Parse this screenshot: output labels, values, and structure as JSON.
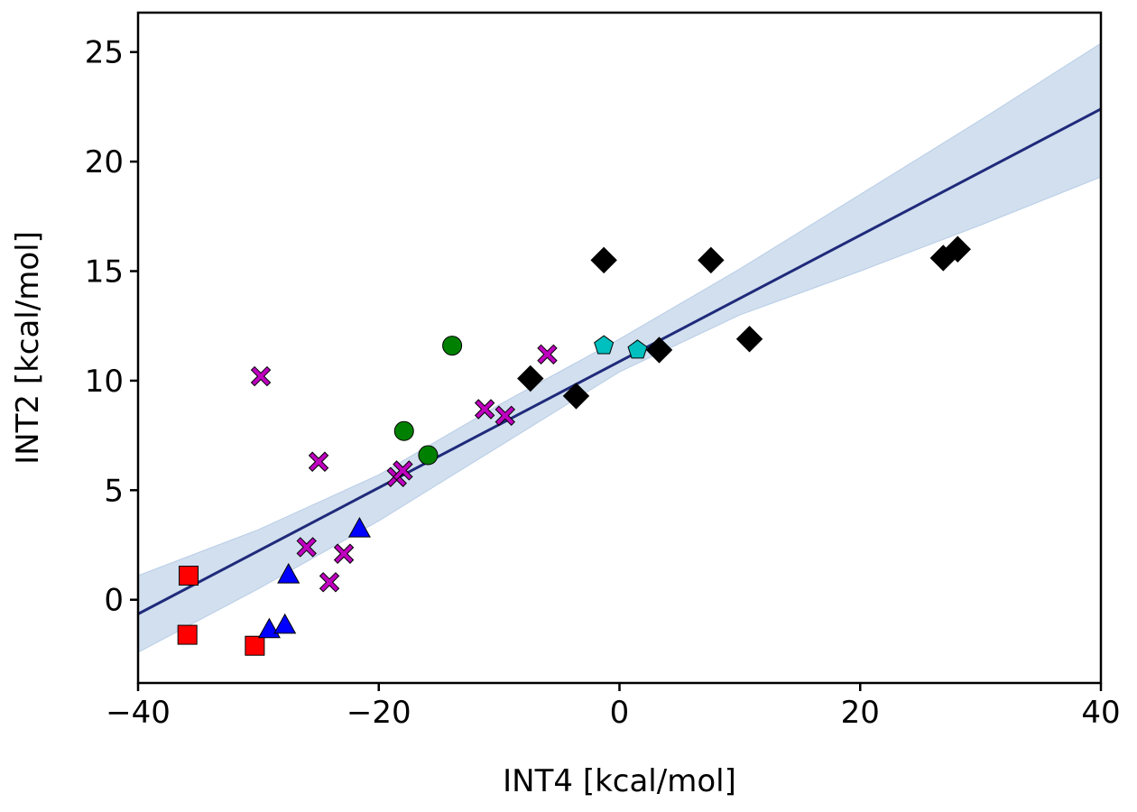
{
  "chart_data": {
    "type": "scatter",
    "title": "",
    "xlabel": "INT4 [kcal/mol]",
    "ylabel": "INT2 [kcal/mol]",
    "xlim": [
      -40,
      40
    ],
    "ylim": [
      -3.8,
      26.8
    ],
    "xticks": [
      -40,
      -20,
      0,
      20,
      40
    ],
    "yticks": [
      0,
      5,
      10,
      15,
      20,
      25
    ],
    "xtick_labels": [
      "−40",
      "−20",
      "0",
      "20",
      "40"
    ],
    "ytick_labels": [
      "0",
      "5",
      "10",
      "15",
      "20",
      "25"
    ],
    "grid": false,
    "legend": "none",
    "fit_line": {
      "color": "#1f2a7a",
      "band_color": "#c9d9ec",
      "line_points": [
        [
          -40,
          -0.65
        ],
        [
          40,
          22.4
        ]
      ],
      "band_upper": [
        [
          -40,
          1.1
        ],
        [
          -30,
          3.2
        ],
        [
          -20,
          5.7
        ],
        [
          -10,
          8.9
        ],
        [
          0,
          11.9
        ],
        [
          10,
          15.1
        ],
        [
          20,
          18.5
        ],
        [
          30,
          21.9
        ],
        [
          40,
          25.4
        ]
      ],
      "band_lower": [
        [
          -40,
          -2.4
        ],
        [
          -30,
          0.5
        ],
        [
          -20,
          3.6
        ],
        [
          -10,
          7.0
        ],
        [
          0,
          10.4
        ],
        [
          10,
          13.0
        ],
        [
          20,
          15.0
        ],
        [
          30,
          17.1
        ],
        [
          40,
          19.3
        ]
      ]
    },
    "series": [
      {
        "marker": "square",
        "color": "#ff0000",
        "points": [
          [
            -35.8,
            1.1
          ],
          [
            -35.9,
            -1.6
          ],
          [
            -30.3,
            -2.1
          ]
        ]
      },
      {
        "marker": "triangle",
        "color": "#0000ff",
        "points": [
          [
            -29.1,
            -1.4
          ],
          [
            -27.5,
            1.1
          ],
          [
            -27.8,
            -1.2
          ],
          [
            -21.6,
            3.2
          ]
        ]
      },
      {
        "marker": "x",
        "color": "#bf00bf",
        "points": [
          [
            -29.8,
            10.2
          ],
          [
            -25.0,
            6.3
          ],
          [
            -26.0,
            2.4
          ],
          [
            -24.1,
            0.8
          ],
          [
            -22.9,
            2.1
          ],
          [
            -18.5,
            5.6
          ],
          [
            -18.0,
            5.9
          ],
          [
            -11.2,
            8.7
          ],
          [
            -9.5,
            8.4
          ],
          [
            -6.0,
            11.2
          ]
        ]
      },
      {
        "marker": "circle",
        "color": "#008000",
        "points": [
          [
            -17.9,
            7.7
          ],
          [
            -15.9,
            6.6
          ],
          [
            -13.9,
            11.6
          ]
        ]
      },
      {
        "marker": "pentagon",
        "color": "#00bfbf",
        "points": [
          [
            -1.3,
            11.6
          ],
          [
            1.5,
            11.4
          ]
        ]
      },
      {
        "marker": "diamond",
        "color": "#000000",
        "points": [
          [
            -7.4,
            10.1
          ],
          [
            -3.6,
            9.3
          ],
          [
            -1.3,
            15.5
          ],
          [
            3.3,
            11.4
          ],
          [
            7.6,
            15.5
          ],
          [
            10.8,
            11.9
          ],
          [
            26.9,
            15.6
          ],
          [
            28.1,
            16.0
          ]
        ]
      }
    ]
  }
}
